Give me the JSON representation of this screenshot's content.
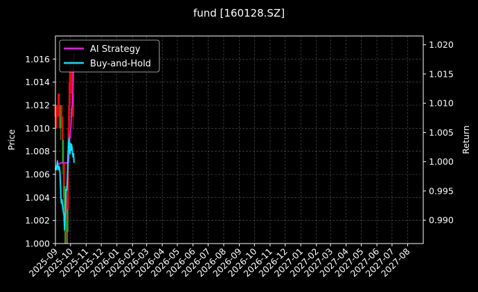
{
  "chart_data": {
    "type": "line",
    "title": "fund [160128.SZ]",
    "ylabel_left": "Price",
    "ylabel_right": "Return",
    "xlabel": "",
    "grid": true,
    "legend_position": "upper-left",
    "x_ticks": [
      "2025-09",
      "2025-10",
      "2025-11",
      "2025-12",
      "2026-01",
      "2026-02",
      "2026-03",
      "2026-04",
      "2026-05",
      "2026-06",
      "2026-07",
      "2026-08",
      "2026-09",
      "2026-10",
      "2026-11",
      "2026-12",
      "2027-01",
      "2027-02",
      "2027-03",
      "2027-04",
      "2027-05",
      "2027-06",
      "2027-07",
      "2027-08"
    ],
    "x_range": [
      "2025-09-01",
      "2027-09-01"
    ],
    "y_left_range": [
      1.0,
      1.018
    ],
    "y_left_ticks": [
      1.0,
      1.002,
      1.004,
      1.006,
      1.008,
      1.01,
      1.012,
      1.014,
      1.016
    ],
    "y_right_range": [
      0.986,
      1.0215
    ],
    "y_right_ticks": [
      0.99,
      0.995,
      1.0,
      1.005,
      1.01,
      1.015,
      1.02
    ],
    "candles": [
      {
        "date": "2025-09-01",
        "open": 1.011,
        "close": 1.012,
        "low": 1.01,
        "high": 1.012,
        "up": false
      },
      {
        "date": "2025-09-02",
        "open": 1.012,
        "close": 1.01,
        "low": 1.01,
        "high": 1.012,
        "up": false
      },
      {
        "date": "2025-09-04",
        "open": 1.012,
        "close": 1.011,
        "low": 1.01,
        "high": 1.012,
        "up": false
      },
      {
        "date": "2025-09-06",
        "open": 1.011,
        "close": 1.012,
        "low": 1.011,
        "high": 1.013,
        "up": false
      },
      {
        "date": "2025-09-08",
        "open": 1.013,
        "close": 1.011,
        "low": 1.01,
        "high": 1.013,
        "up": false
      },
      {
        "date": "2025-09-10",
        "open": 1.011,
        "close": 1.012,
        "low": 1.01,
        "high": 1.012,
        "up": false
      },
      {
        "date": "2025-09-11",
        "open": 1.012,
        "close": 1.01,
        "low": 1.009,
        "high": 1.012,
        "up": true
      },
      {
        "date": "2025-09-13",
        "open": 1.012,
        "close": 1.011,
        "low": 1.01,
        "high": 1.012,
        "up": false
      },
      {
        "date": "2025-09-15",
        "open": 1.011,
        "close": 1.009,
        "low": 1.008,
        "high": 1.011,
        "up": false
      },
      {
        "date": "2025-09-16",
        "open": 1.009,
        "close": 1.007,
        "low": 1.006,
        "high": 1.009,
        "up": true
      },
      {
        "date": "2025-09-18",
        "open": 1.007,
        "close": 1.004,
        "low": 1.003,
        "high": 1.007,
        "up": false
      },
      {
        "date": "2025-09-19",
        "open": 1.005,
        "close": 1.002,
        "low": 1.002,
        "high": 1.005,
        "up": true
      },
      {
        "date": "2025-09-20",
        "open": 1.003,
        "close": 1.001,
        "low": 1.0,
        "high": 1.003,
        "up": false
      },
      {
        "date": "2025-09-21",
        "open": 1.002,
        "close": 1.0,
        "low": 1.0,
        "high": 1.002,
        "up": true
      },
      {
        "date": "2025-09-22",
        "open": 1.001,
        "close": 1.004,
        "low": 1.0,
        "high": 1.005,
        "up": false
      },
      {
        "date": "2025-09-23",
        "open": 1.004,
        "close": 1.002,
        "low": 1.001,
        "high": 1.005,
        "up": false
      },
      {
        "date": "2025-09-24",
        "open": 1.002,
        "close": 1.001,
        "low": 1.0,
        "high": 1.003,
        "up": true
      },
      {
        "date": "2025-09-25",
        "open": 1.001,
        "close": 1.003,
        "low": 1.0,
        "high": 1.005,
        "up": true
      },
      {
        "date": "2025-09-26",
        "open": 1.003,
        "close": 1.007,
        "low": 1.003,
        "high": 1.008,
        "up": false
      },
      {
        "date": "2025-09-27",
        "open": 1.007,
        "close": 1.01,
        "low": 1.006,
        "high": 1.01,
        "up": false
      },
      {
        "date": "2025-09-28",
        "open": 1.01,
        "close": 1.012,
        "low": 1.009,
        "high": 1.013,
        "up": false
      },
      {
        "date": "2025-09-29",
        "open": 1.012,
        "close": 1.014,
        "low": 1.011,
        "high": 1.015,
        "up": false
      },
      {
        "date": "2025-09-30",
        "open": 1.014,
        "close": 1.015,
        "low": 1.013,
        "high": 1.016,
        "up": false
      },
      {
        "date": "2025-10-02",
        "open": 1.015,
        "close": 1.013,
        "low": 1.013,
        "high": 1.016,
        "up": false
      },
      {
        "date": "2025-10-03",
        "open": 1.013,
        "close": 1.015,
        "low": 1.012,
        "high": 1.015,
        "up": false
      },
      {
        "date": "2025-10-04",
        "open": 1.015,
        "close": 1.014,
        "low": 1.013,
        "high": 1.016,
        "up": false
      },
      {
        "date": "2025-10-05",
        "open": 1.014,
        "close": 1.013,
        "low": 1.013,
        "high": 1.015,
        "up": false
      },
      {
        "date": "2025-10-06",
        "open": 1.013,
        "close": 1.011,
        "low": 1.01,
        "high": 1.014,
        "up": false
      }
    ],
    "series": [
      {
        "name": "AI Strategy",
        "color": "#e619e6",
        "axis": "right",
        "points": [
          [
            "2025-09-01",
            0.9992
          ],
          [
            "2025-09-03",
            0.9993
          ],
          [
            "2025-09-04",
            0.9993
          ],
          [
            "2025-09-05",
            1.0002
          ],
          [
            "2025-09-06",
            0.9995
          ],
          [
            "2025-09-07",
            0.9996
          ],
          [
            "2025-09-09",
            0.9996
          ],
          [
            "2025-09-11",
            0.9998
          ],
          [
            "2025-09-13",
            0.9998
          ],
          [
            "2025-09-15",
            0.9998
          ],
          [
            "2025-09-17",
            0.9998
          ],
          [
            "2025-09-19",
            0.9998
          ],
          [
            "2025-09-21",
            0.9998
          ],
          [
            "2025-09-23",
            0.9998
          ],
          [
            "2025-09-25",
            0.9998
          ],
          [
            "2025-09-27",
            0.9998
          ],
          [
            "2025-09-28",
            1.001
          ],
          [
            "2025-09-29",
            1.0045
          ],
          [
            "2025-09-30",
            1.004
          ],
          [
            "2025-10-01",
            1.0055
          ],
          [
            "2025-10-02",
            1.006
          ],
          [
            "2025-10-03",
            1.009
          ],
          [
            "2025-10-04",
            1.0095
          ],
          [
            "2025-10-05",
            1.0095
          ],
          [
            "2025-10-06",
            1.013
          ],
          [
            "2025-10-07",
            1.017
          ],
          [
            "2025-10-08",
            1.018
          ],
          [
            "2025-10-09",
            1.0185
          ]
        ]
      },
      {
        "name": "Buy-and-Hold",
        "color": "#00e5ff",
        "axis": "left",
        "points": [
          [
            "2025-09-01",
            1.0064
          ],
          [
            "2025-09-02",
            1.0067
          ],
          [
            "2025-09-03",
            1.0064
          ],
          [
            "2025-09-04",
            1.0067
          ],
          [
            "2025-09-05",
            1.0071
          ],
          [
            "2025-09-06",
            1.0067
          ],
          [
            "2025-09-07",
            1.0064
          ],
          [
            "2025-09-08",
            1.0067
          ],
          [
            "2025-09-09",
            1.0066
          ],
          [
            "2025-09-10",
            1.0062
          ],
          [
            "2025-09-11",
            1.005
          ],
          [
            "2025-09-12",
            1.004
          ],
          [
            "2025-09-13",
            1.0035
          ],
          [
            "2025-09-14",
            1.0038
          ],
          [
            "2025-09-15",
            1.0033
          ],
          [
            "2025-09-16",
            1.003
          ],
          [
            "2025-09-17",
            1.0027
          ],
          [
            "2025-09-18",
            1.0025
          ],
          [
            "2025-09-19",
            1.0012
          ],
          [
            "2025-09-20",
            1.002
          ],
          [
            "2025-09-21",
            1.003
          ],
          [
            "2025-09-22",
            1.0047
          ],
          [
            "2025-09-23",
            1.0046
          ],
          [
            "2025-09-24",
            1.0047
          ],
          [
            "2025-09-25",
            1.006
          ],
          [
            "2025-09-26",
            1.0078
          ],
          [
            "2025-09-27",
            1.0085
          ],
          [
            "2025-09-28",
            1.0091
          ],
          [
            "2025-09-29",
            1.008
          ],
          [
            "2025-09-30",
            1.0078
          ],
          [
            "2025-10-01",
            1.0087
          ],
          [
            "2025-10-02",
            1.0081
          ],
          [
            "2025-10-03",
            1.0086
          ],
          [
            "2025-10-04",
            1.0083
          ],
          [
            "2025-10-05",
            1.0078
          ],
          [
            "2025-10-06",
            1.0075
          ],
          [
            "2025-10-07",
            1.0078
          ],
          [
            "2025-10-08",
            1.007
          ]
        ]
      }
    ]
  }
}
